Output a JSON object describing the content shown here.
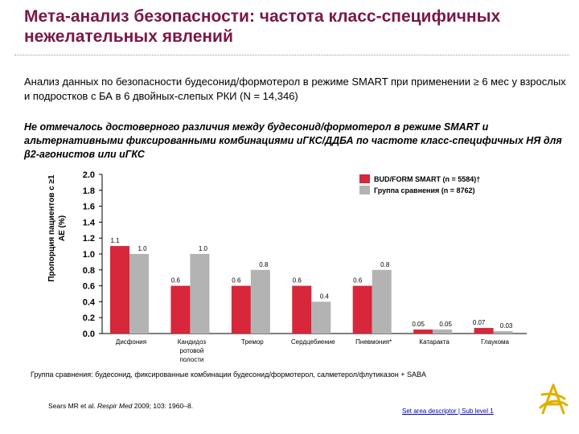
{
  "header": {
    "title": "Мета-анализ безопасности: частота класс-специфичных нежелательных явлений"
  },
  "intro": "Анализ данных по безопасности будесонид/формотерол в режиме SMART при применении ≥ 6 мес у взрослых и подростков с БА в 6 двойных-слепых РКИ (N = 14,346)",
  "statement": "Не отмечалось достоверного различия между будесонид/формотерол в режиме SMART и альтернативными фиксированными комбинациями иГКС/ДДБА по частоте класс-специфичных НЯ для β2-агонистов или иГКС",
  "colors": {
    "title": "#7a1746",
    "series1": "#d8263a",
    "series2": "#b3b3b3",
    "descriptor": "#0000bb"
  },
  "chart_data": {
    "type": "bar",
    "ylabel": "Пропорция пациентов с ≥1 АЕ (%)",
    "ylim": [
      0,
      2.0
    ],
    "yticks": [
      "0.0",
      "0.2",
      "0.4",
      "0.6",
      "0.8",
      "1.0",
      "1.2",
      "1.4",
      "1.6",
      "1.8",
      "2.0"
    ],
    "categories": [
      "Дисфония",
      "Кандидоз ротовой полости",
      "Тремор",
      "Сердцебиение",
      "Пневмония*",
      "Катаракта",
      "Глаукома"
    ],
    "series": [
      {
        "name": "BUD/FORM SMART (n = 5584)†",
        "values": [
          1.1,
          0.6,
          0.6,
          0.6,
          0.6,
          0.05,
          0.07
        ],
        "labels": [
          "1.1",
          "0.6",
          "0.6",
          "0.6",
          "0.6",
          "0.05",
          "0.07"
        ]
      },
      {
        "name": "Группа сравнения (n = 8762)",
        "values": [
          1.0,
          1.0,
          0.8,
          0.4,
          0.8,
          0.05,
          0.03
        ],
        "labels": [
          "1.0",
          "1.0",
          "0.8",
          "0.4",
          "0.8",
          "0.05",
          "0.03"
        ]
      }
    ],
    "legend_position": "top-right",
    "grid": false
  },
  "footnote": "Группа сравнения: будесонид, фиксированные комбинации будесонид/формотерол, салметерол/флутиказон + SABA",
  "reference": {
    "authors": "Sears MR et al. ",
    "journal": "Respir Med",
    "rest": " 2009; 103: 1960–8."
  },
  "descriptor": "Set area descriptor | Sub level 1",
  "logo": {
    "icon": "astrazeneca-logo-icon"
  }
}
